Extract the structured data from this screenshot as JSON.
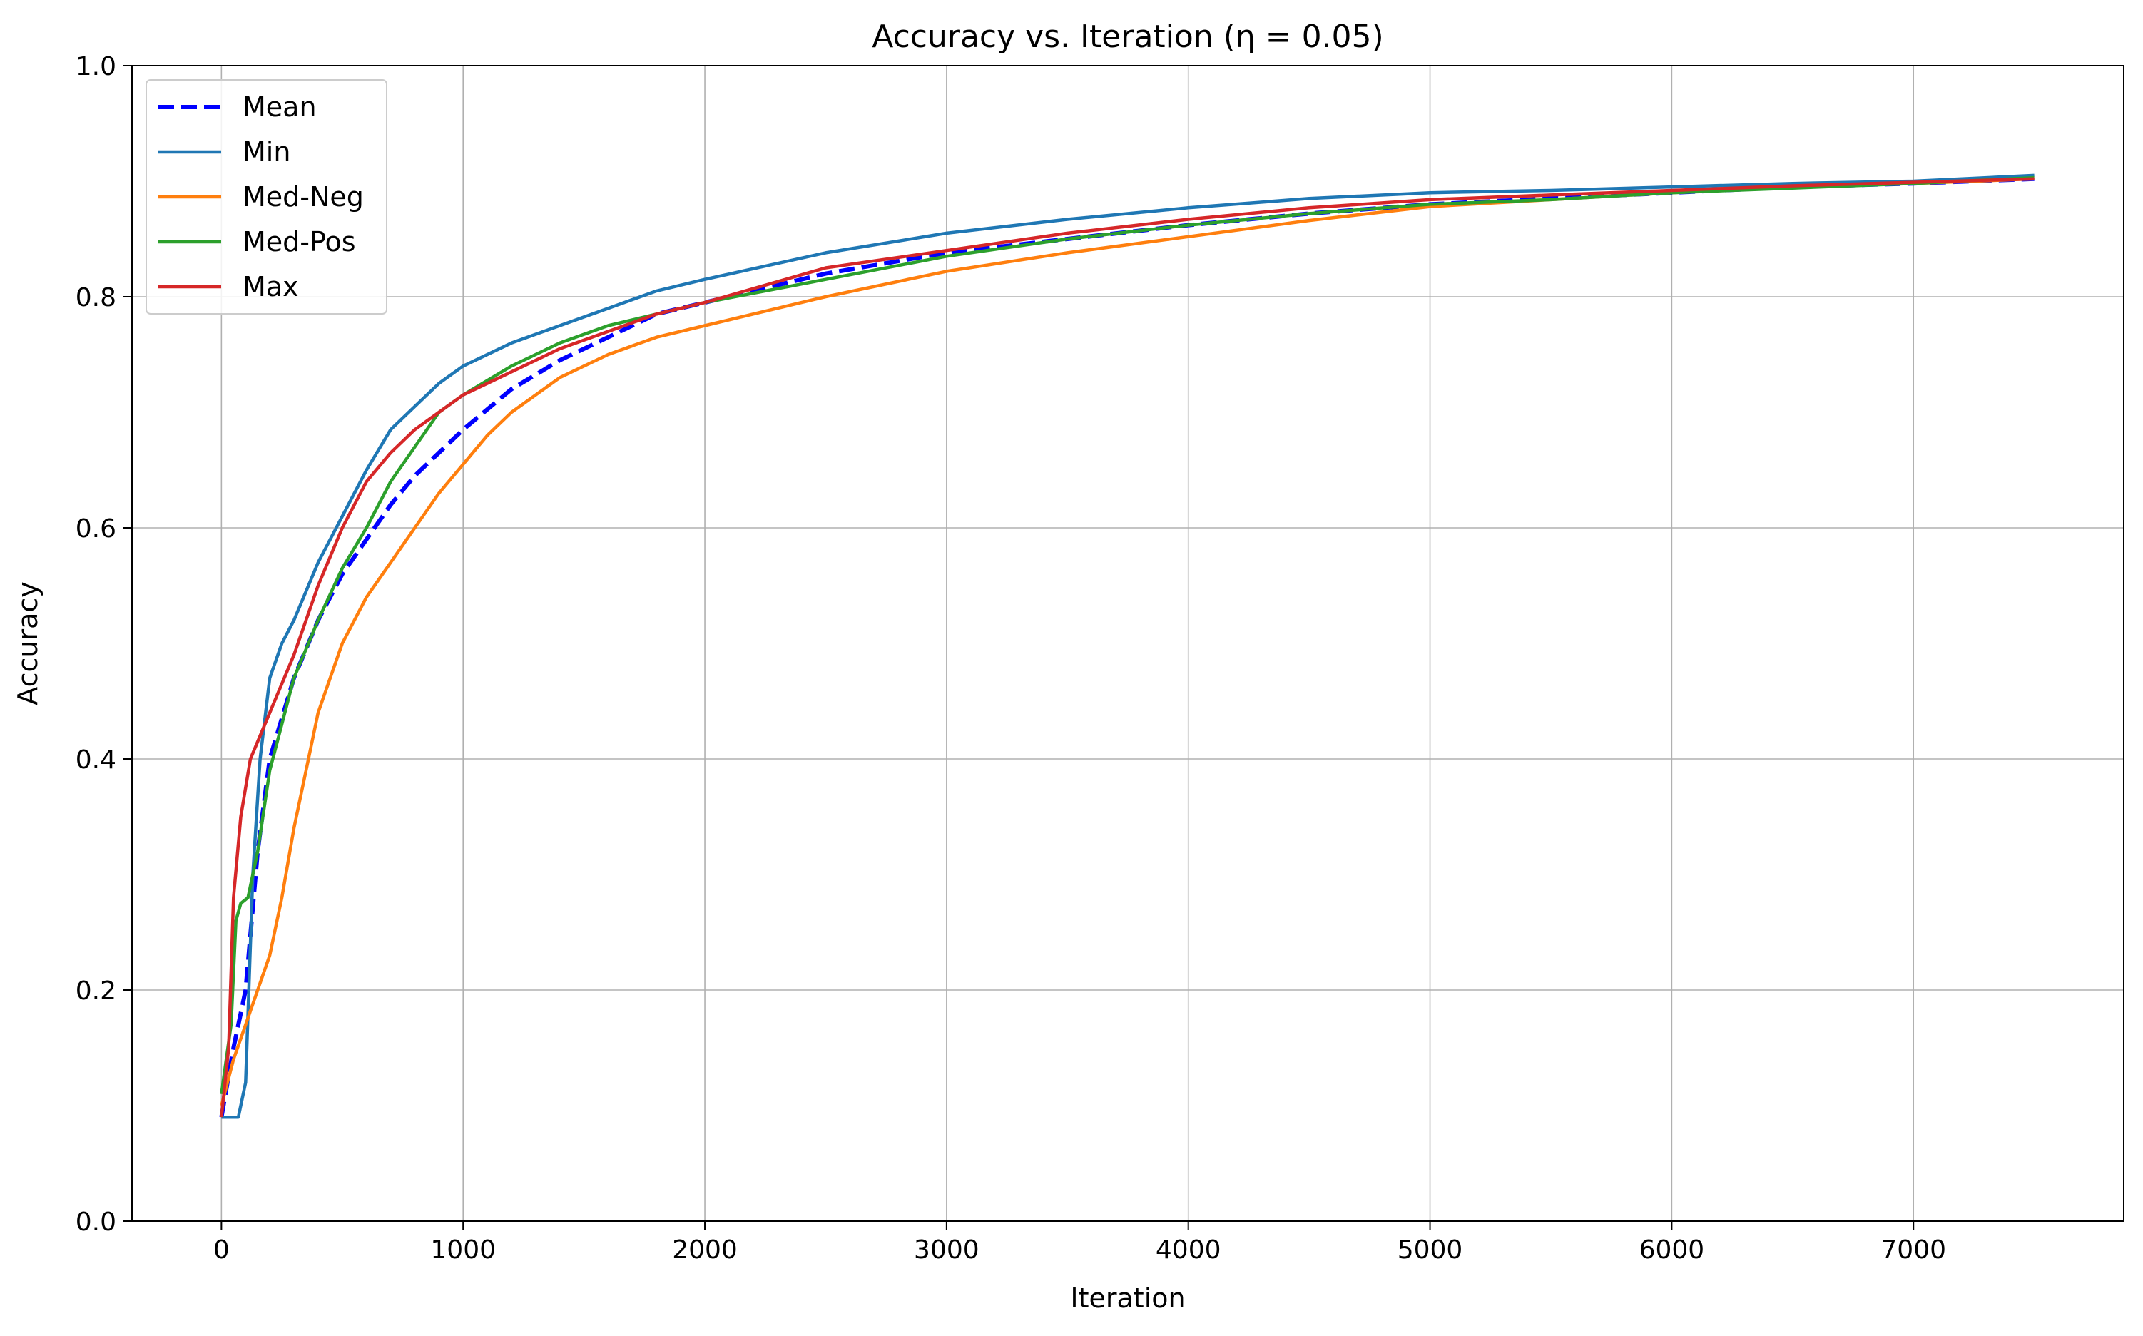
{
  "chart_data": {
    "type": "line",
    "title": "Accuracy vs. Iteration (η = 0.05)",
    "xlabel": "Iteration",
    "ylabel": "Accuracy",
    "xlim": [
      -370,
      7870
    ],
    "ylim": [
      0.0,
      1.0
    ],
    "x_ticks": [
      0,
      1000,
      2000,
      3000,
      4000,
      5000,
      6000,
      7000
    ],
    "y_ticks": [
      0.0,
      0.2,
      0.4,
      0.6,
      0.8,
      1.0
    ],
    "x_tick_labels": [
      "0",
      "1000",
      "2000",
      "3000",
      "4000",
      "5000",
      "6000",
      "7000"
    ],
    "y_tick_labels": [
      "0.0",
      "0.2",
      "0.4",
      "0.6",
      "0.8",
      "1.0"
    ],
    "grid": true,
    "legend_position": "upper-left",
    "series": [
      {
        "name": "Mean",
        "color": "#0000ff",
        "style": "dashed",
        "points": [
          [
            0,
            0.09
          ],
          [
            50,
            0.15
          ],
          [
            100,
            0.2
          ],
          [
            150,
            0.32
          ],
          [
            200,
            0.4
          ],
          [
            300,
            0.47
          ],
          [
            400,
            0.52
          ],
          [
            500,
            0.56
          ],
          [
            600,
            0.59
          ],
          [
            700,
            0.62
          ],
          [
            800,
            0.645
          ],
          [
            900,
            0.665
          ],
          [
            1000,
            0.685
          ],
          [
            1200,
            0.72
          ],
          [
            1400,
            0.745
          ],
          [
            1600,
            0.765
          ],
          [
            1800,
            0.785
          ],
          [
            2000,
            0.795
          ],
          [
            2500,
            0.82
          ],
          [
            3000,
            0.838
          ],
          [
            3500,
            0.85
          ],
          [
            4000,
            0.862
          ],
          [
            4500,
            0.872
          ],
          [
            5000,
            0.88
          ],
          [
            5500,
            0.885
          ],
          [
            6000,
            0.89
          ],
          [
            6500,
            0.895
          ],
          [
            7000,
            0.898
          ],
          [
            7500,
            0.902
          ]
        ]
      },
      {
        "name": "Min",
        "color": "#1f77b4",
        "style": "solid",
        "points": [
          [
            0,
            0.09
          ],
          [
            70,
            0.09
          ],
          [
            100,
            0.12
          ],
          [
            130,
            0.3
          ],
          [
            160,
            0.4
          ],
          [
            200,
            0.47
          ],
          [
            250,
            0.5
          ],
          [
            300,
            0.52
          ],
          [
            400,
            0.57
          ],
          [
            500,
            0.61
          ],
          [
            600,
            0.65
          ],
          [
            700,
            0.685
          ],
          [
            800,
            0.705
          ],
          [
            900,
            0.725
          ],
          [
            1000,
            0.74
          ],
          [
            1200,
            0.76
          ],
          [
            1400,
            0.775
          ],
          [
            1600,
            0.79
          ],
          [
            1800,
            0.805
          ],
          [
            2000,
            0.815
          ],
          [
            2500,
            0.838
          ],
          [
            3000,
            0.855
          ],
          [
            3500,
            0.867
          ],
          [
            4000,
            0.877
          ],
          [
            4500,
            0.885
          ],
          [
            5000,
            0.89
          ],
          [
            5500,
            0.892
          ],
          [
            6000,
            0.895
          ],
          [
            6500,
            0.898
          ],
          [
            7000,
            0.9
          ],
          [
            7500,
            0.905
          ]
        ]
      },
      {
        "name": "Med-Neg",
        "color": "#ff7f0e",
        "style": "solid",
        "points": [
          [
            0,
            0.1
          ],
          [
            50,
            0.14
          ],
          [
            100,
            0.17
          ],
          [
            150,
            0.2
          ],
          [
            200,
            0.23
          ],
          [
            250,
            0.28
          ],
          [
            300,
            0.34
          ],
          [
            350,
            0.39
          ],
          [
            400,
            0.44
          ],
          [
            500,
            0.5
          ],
          [
            600,
            0.54
          ],
          [
            700,
            0.57
          ],
          [
            800,
            0.6
          ],
          [
            900,
            0.63
          ],
          [
            1000,
            0.655
          ],
          [
            1100,
            0.68
          ],
          [
            1200,
            0.7
          ],
          [
            1400,
            0.73
          ],
          [
            1600,
            0.75
          ],
          [
            1800,
            0.765
          ],
          [
            2000,
            0.775
          ],
          [
            2500,
            0.8
          ],
          [
            3000,
            0.822
          ],
          [
            3500,
            0.838
          ],
          [
            4000,
            0.852
          ],
          [
            4500,
            0.866
          ],
          [
            5000,
            0.878
          ],
          [
            5500,
            0.884
          ],
          [
            6000,
            0.89
          ],
          [
            6500,
            0.895
          ],
          [
            7000,
            0.898
          ],
          [
            7500,
            0.902
          ]
        ]
      },
      {
        "name": "Med-Pos",
        "color": "#2ca02c",
        "style": "solid",
        "points": [
          [
            0,
            0.11
          ],
          [
            40,
            0.17
          ],
          [
            60,
            0.26
          ],
          [
            80,
            0.275
          ],
          [
            110,
            0.28
          ],
          [
            150,
            0.32
          ],
          [
            200,
            0.39
          ],
          [
            300,
            0.47
          ],
          [
            400,
            0.52
          ],
          [
            500,
            0.565
          ],
          [
            600,
            0.6
          ],
          [
            700,
            0.64
          ],
          [
            800,
            0.67
          ],
          [
            900,
            0.7
          ],
          [
            1000,
            0.715
          ],
          [
            1200,
            0.74
          ],
          [
            1400,
            0.76
          ],
          [
            1600,
            0.775
          ],
          [
            1800,
            0.785
          ],
          [
            2000,
            0.795
          ],
          [
            2500,
            0.815
          ],
          [
            3000,
            0.835
          ],
          [
            3500,
            0.85
          ],
          [
            4000,
            0.862
          ],
          [
            4500,
            0.872
          ],
          [
            5000,
            0.88
          ],
          [
            5500,
            0.884
          ],
          [
            6000,
            0.89
          ],
          [
            6500,
            0.894
          ],
          [
            7000,
            0.898
          ],
          [
            7500,
            0.903
          ]
        ]
      },
      {
        "name": "Max",
        "color": "#d62728",
        "style": "solid",
        "points": [
          [
            0,
            0.09
          ],
          [
            30,
            0.15
          ],
          [
            50,
            0.28
          ],
          [
            80,
            0.35
          ],
          [
            120,
            0.4
          ],
          [
            200,
            0.44
          ],
          [
            300,
            0.49
          ],
          [
            400,
            0.55
          ],
          [
            500,
            0.6
          ],
          [
            600,
            0.64
          ],
          [
            700,
            0.665
          ],
          [
            800,
            0.685
          ],
          [
            900,
            0.7
          ],
          [
            1000,
            0.715
          ],
          [
            1200,
            0.735
          ],
          [
            1400,
            0.755
          ],
          [
            1600,
            0.77
          ],
          [
            1800,
            0.785
          ],
          [
            2000,
            0.795
          ],
          [
            2500,
            0.825
          ],
          [
            3000,
            0.84
          ],
          [
            3500,
            0.855
          ],
          [
            4000,
            0.867
          ],
          [
            4500,
            0.877
          ],
          [
            5000,
            0.884
          ],
          [
            5500,
            0.888
          ],
          [
            6000,
            0.892
          ],
          [
            6500,
            0.896
          ],
          [
            7000,
            0.899
          ],
          [
            7500,
            0.902
          ]
        ]
      }
    ]
  }
}
